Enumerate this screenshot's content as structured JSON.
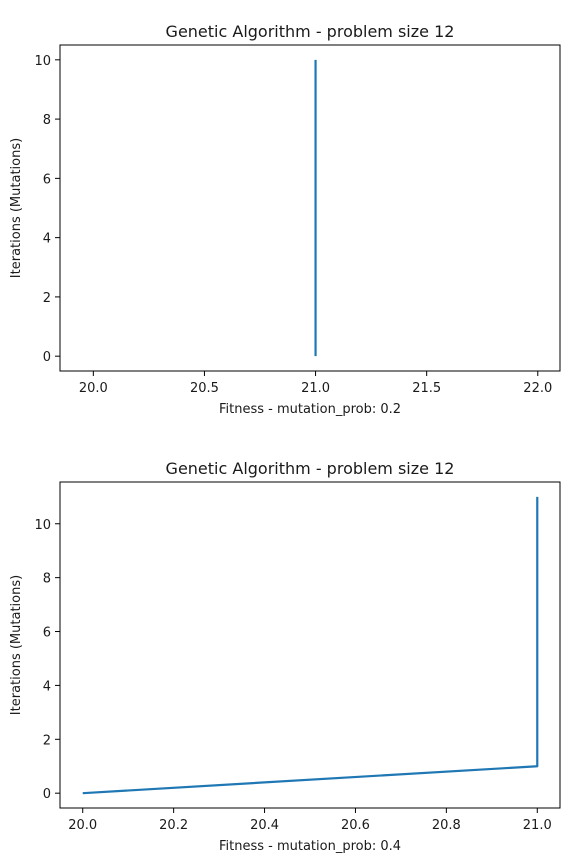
{
  "chart_data": [
    {
      "type": "line",
      "title": "Genetic Algorithm - problem size 12",
      "xlabel": "Fitness - mutation_prob: 0.2",
      "ylabel": "Iterations (Mutations)",
      "xlim": [
        19.85,
        22.1
      ],
      "ylim": [
        -0.5,
        10.5
      ],
      "xticks": [
        20.0,
        20.5,
        21.0,
        21.5,
        22.0
      ],
      "xtick_labels": [
        "20.0",
        "20.5",
        "21.0",
        "21.5",
        "22.0"
      ],
      "yticks": [
        0,
        2,
        4,
        6,
        8,
        10
      ],
      "ytick_labels": [
        "0",
        "2",
        "4",
        "6",
        "8",
        "10"
      ],
      "grid": false,
      "series": [
        {
          "x": [
            21,
            21,
            21,
            21,
            21,
            21,
            21,
            21,
            21,
            21,
            21
          ],
          "y": [
            0,
            1,
            2,
            3,
            4,
            5,
            6,
            7,
            8,
            9,
            10
          ],
          "color": "#1f77b4"
        }
      ]
    },
    {
      "type": "line",
      "title": "Genetic Algorithm - problem size 12",
      "xlabel": "Fitness - mutation_prob: 0.4",
      "ylabel": "Iterations (Mutations)",
      "xlim": [
        19.95,
        21.05
      ],
      "ylim": [
        -0.55,
        11.55
      ],
      "xticks": [
        20.0,
        20.2,
        20.4,
        20.6,
        20.8,
        21.0
      ],
      "xtick_labels": [
        "20.0",
        "20.2",
        "20.4",
        "20.6",
        "20.8",
        "21.0"
      ],
      "yticks": [
        0,
        2,
        4,
        6,
        8,
        10
      ],
      "ytick_labels": [
        "0",
        "2",
        "4",
        "6",
        "8",
        "10"
      ],
      "grid": false,
      "series": [
        {
          "x": [
            20,
            21,
            21,
            21,
            21,
            21,
            21,
            21,
            21,
            21,
            21,
            21
          ],
          "y": [
            0,
            1,
            2,
            3,
            4,
            5,
            6,
            7,
            8,
            9,
            10,
            11
          ],
          "color": "#1f77b4"
        }
      ]
    }
  ]
}
